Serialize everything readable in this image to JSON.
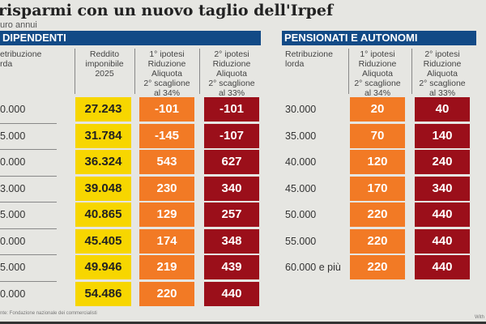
{
  "title": "risparmi con un nuovo taglio dell'Irpef",
  "subtitle": "uro annui",
  "source": "nte: Fondazione nazionale dei commercialisti",
  "credit": "With",
  "colors": {
    "band": "#124a86",
    "yellow": "#f7d600",
    "orange": "#f27a25",
    "red": "#9b0f1a"
  },
  "chart_data": [
    {
      "type": "table",
      "title": "DIPENDENTI",
      "columns": [
        "etribuzione\nrda",
        "Reddito\nimponibile\n2025",
        "1° ipotesi\nRiduzione\nAliquota\n2° scaglione\nal 34%",
        "2° ipotesi\nRiduzione\nAliquota\n2° scaglione\nal 33%"
      ],
      "rows": [
        [
          "0.000",
          "27.243",
          "-101",
          "-101"
        ],
        [
          "5.000",
          "31.784",
          "-145",
          "-107"
        ],
        [
          "0.000",
          "36.324",
          "543",
          "627"
        ],
        [
          "3.000",
          "39.048",
          "230",
          "340"
        ],
        [
          "5.000",
          "40.865",
          "129",
          "257"
        ],
        [
          "0.000",
          "45.405",
          "174",
          "348"
        ],
        [
          "5.000",
          "49.946",
          "219",
          "439"
        ],
        [
          "0.000",
          "54.486",
          "220",
          "440"
        ]
      ]
    },
    {
      "type": "table",
      "title": "PENSIONATI E AUTONOMI",
      "columns": [
        "Retribuzione\nlorda",
        "1° ipotesi\nRiduzione\nAliquota\n2° scaglione\nal 34%",
        "2° ipotesi\nRiduzione\nAliquota\n2° scaglione\nal 33%"
      ],
      "rows": [
        [
          "30.000",
          "20",
          "40"
        ],
        [
          "35.000",
          "70",
          "140"
        ],
        [
          "40.000",
          "120",
          "240"
        ],
        [
          "45.000",
          "170",
          "340"
        ],
        [
          "50.000",
          "220",
          "440"
        ],
        [
          "55.000",
          "220",
          "440"
        ],
        [
          "60.000 e più",
          "220",
          "440"
        ]
      ]
    }
  ]
}
